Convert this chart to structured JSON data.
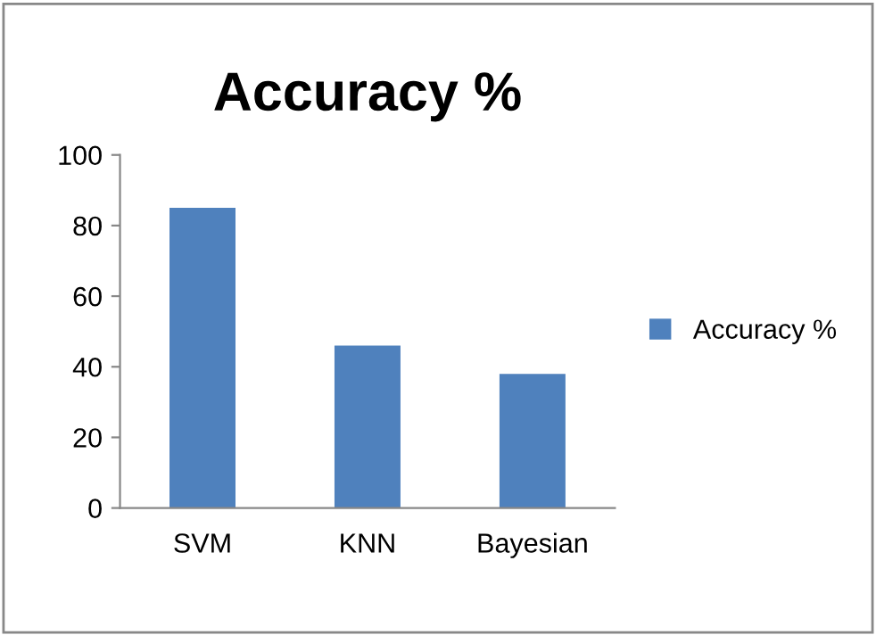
{
  "chart_data": {
    "type": "bar",
    "title": "Accuracy %",
    "categories": [
      "SVM",
      "KNN",
      "Bayesian"
    ],
    "series": [
      {
        "name": "Accuracy %",
        "color": "#4f81bd",
        "values": [
          85,
          46,
          38
        ]
      }
    ],
    "ylim": [
      0,
      100
    ],
    "yticks": [
      0,
      20,
      40,
      60,
      80,
      100
    ],
    "grid": false,
    "legend": "right"
  }
}
